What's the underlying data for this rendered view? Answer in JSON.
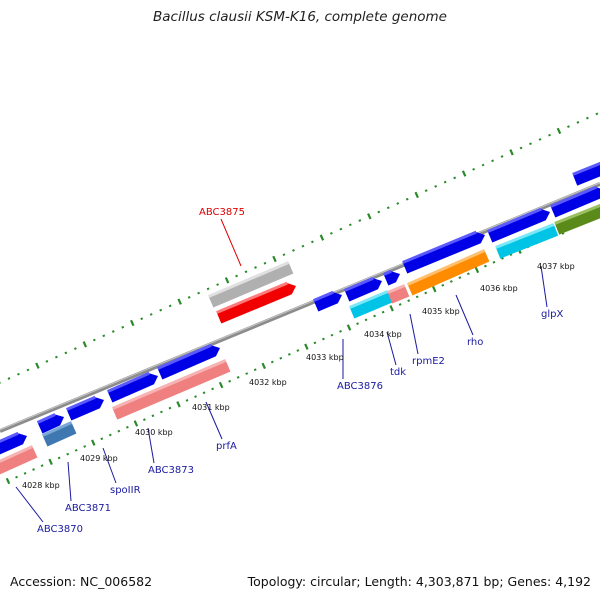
{
  "title": "Bacillus clausii KSM-K16, complete genome",
  "footer": {
    "accession": "Accession: NC_006582",
    "summary": "Topology: circular; Length: 4,303,871 bp; Genes: 4,192"
  },
  "colors": {
    "backbone": "#8c8c8c",
    "tick": "#2a8a2a",
    "label_default": "#1a1aa0",
    "label_highlight": "#e00000"
  },
  "kbp_labels": [
    "4028 kbp",
    "4029 kbp",
    "4030 kbp",
    "4031 kbp",
    "4032 kbp",
    "4033 kbp",
    "4034 kbp",
    "4035 kbp",
    "4036 kbp",
    "4037 kbp"
  ],
  "gene_labels": [
    "ABC3870",
    "ABC3871",
    "spoIIR",
    "ABC3873",
    "prfA",
    "ABC3875",
    "ABC3876",
    "tdk",
    "rpmE2",
    "rho",
    "glpX"
  ],
  "features": {
    "outer_blue": [
      "blue",
      "blue",
      "blue",
      "blue",
      "blue",
      "blue",
      "blue",
      "blue",
      "blue",
      "blue",
      "blue",
      "blue"
    ],
    "inner": [
      "salmon",
      "steelblue",
      "salmon",
      "salmon",
      "cyan",
      "salmon",
      "orange",
      "cyan",
      "olive"
    ],
    "upper_grey": "grey",
    "upper_red": "red"
  }
}
